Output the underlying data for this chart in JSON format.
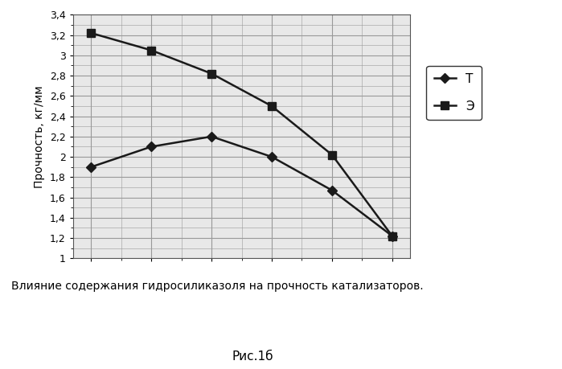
{
  "x_values": [
    1,
    2,
    3,
    4,
    5,
    6
  ],
  "series_T": {
    "label": "Т",
    "values": [
      1.9,
      2.1,
      2.2,
      2.0,
      1.67,
      1.22
    ],
    "color": "#1a1a1a",
    "marker": "D",
    "markersize": 6,
    "linewidth": 1.8
  },
  "series_E": {
    "label": "Э",
    "values": [
      3.22,
      3.05,
      2.82,
      2.5,
      2.02,
      1.22
    ],
    "color": "#1a1a1a",
    "marker": "s",
    "markersize": 7,
    "linewidth": 1.8
  },
  "ylim": [
    1.0,
    3.4
  ],
  "yticks": [
    1.0,
    1.2,
    1.4,
    1.6,
    1.8,
    2.0,
    2.2,
    2.4,
    2.6,
    2.8,
    3.0,
    3.2,
    3.4
  ],
  "ytick_labels": [
    "1",
    "1,2",
    "1,4",
    "1,6",
    "1,8",
    "2",
    "2,2",
    "2,4",
    "2,6",
    "2,8",
    "3",
    "3,2",
    "3,4"
  ],
  "xlim": [
    0.7,
    6.3
  ],
  "xticks": [
    1,
    2,
    3,
    4,
    5,
    6
  ],
  "ylabel": "Прочность, кг/мм",
  "grid_color": "#999999",
  "background_color": "#e8e8e8",
  "caption": "Влияние содержания гидросиликазоля на прочность катализаторов.",
  "figure_label": "Рис.1б",
  "fig_width": 6.99,
  "fig_height": 4.59,
  "dpi": 100
}
